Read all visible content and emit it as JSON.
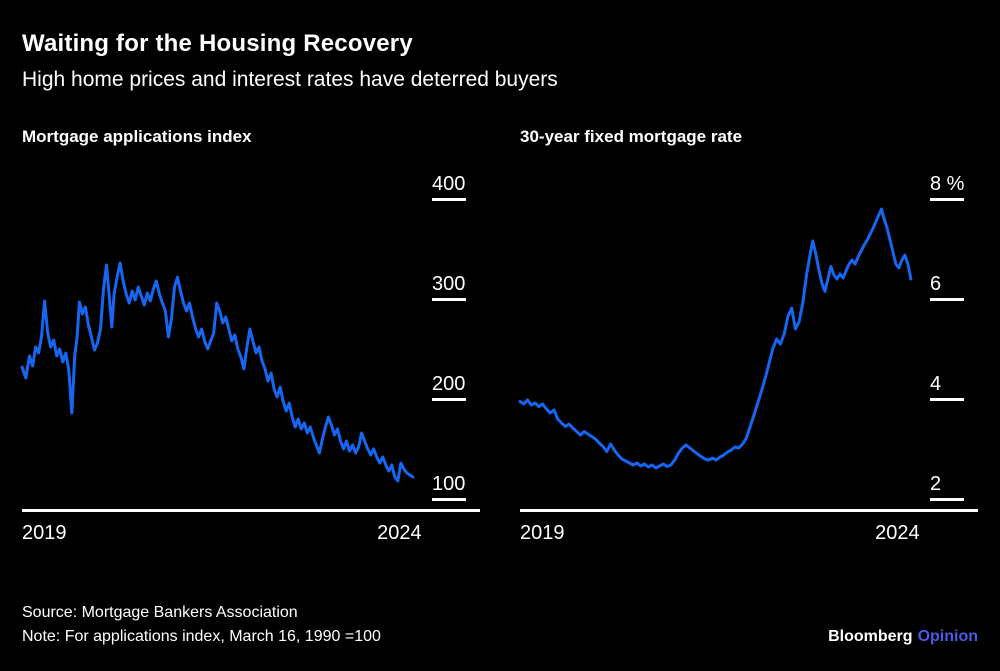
{
  "header": {
    "title": "Waiting for the Housing Recovery",
    "subtitle": "High home prices and interest rates have deterred buyers"
  },
  "footer": {
    "source": "Source: Mortgage Bankers Association",
    "note": "Note: For applications index, March 16, 1990 =100",
    "brand": {
      "name": "Bloomberg",
      "division": "Opinion"
    }
  },
  "colors": {
    "background": "#000000",
    "text": "#ffffff",
    "axis": "#ffffff",
    "line": "#1766f2",
    "brand_accent": "#4a5ae8"
  },
  "chart_data": [
    {
      "type": "line",
      "title": "Mortgage applications index",
      "x_range": [
        2019.0,
        2024.3
      ],
      "y_domain": [
        90,
        430
      ],
      "grid": "off",
      "legend": "none",
      "yticks": [
        {
          "label": "400",
          "value": 400
        },
        {
          "label": "300",
          "value": 300
        },
        {
          "label": "200",
          "value": 200
        },
        {
          "label": "100",
          "value": 100
        }
      ],
      "xticks": [
        {
          "label": "2019",
          "value": 2019,
          "align": "start"
        },
        {
          "label": "2024",
          "value": 2024,
          "align": "center"
        }
      ],
      "series": [
        {
          "name": "Mortgage applications index",
          "points": [
            [
              2019.0,
              232
            ],
            [
              2019.05,
              221
            ],
            [
              2019.1,
              243
            ],
            [
              2019.14,
              233
            ],
            [
              2019.18,
              252
            ],
            [
              2019.22,
              246
            ],
            [
              2019.26,
              263
            ],
            [
              2019.3,
              298
            ],
            [
              2019.34,
              266
            ],
            [
              2019.38,
              252
            ],
            [
              2019.42,
              259
            ],
            [
              2019.46,
              243
            ],
            [
              2019.5,
              250
            ],
            [
              2019.54,
              237
            ],
            [
              2019.58,
              246
            ],
            [
              2019.62,
              229
            ],
            [
              2019.66,
              186
            ],
            [
              2019.7,
              244
            ],
            [
              2019.73,
              262
            ],
            [
              2019.76,
              297
            ],
            [
              2019.8,
              285
            ],
            [
              2019.84,
              292
            ],
            [
              2019.88,
              274
            ],
            [
              2019.92,
              262
            ],
            [
              2019.96,
              249
            ],
            [
              2020.0,
              256
            ],
            [
              2020.04,
              270
            ],
            [
              2020.08,
              310
            ],
            [
              2020.12,
              334
            ],
            [
              2020.16,
              300
            ],
            [
              2020.19,
              272
            ],
            [
              2020.22,
              305
            ],
            [
              2020.26,
              322
            ],
            [
              2020.3,
              336
            ],
            [
              2020.34,
              318
            ],
            [
              2020.38,
              305
            ],
            [
              2020.42,
              296
            ],
            [
              2020.46,
              308
            ],
            [
              2020.5,
              299
            ],
            [
              2020.54,
              312
            ],
            [
              2020.58,
              303
            ],
            [
              2020.62,
              294
            ],
            [
              2020.66,
              306
            ],
            [
              2020.7,
              298
            ],
            [
              2020.74,
              310
            ],
            [
              2020.78,
              318
            ],
            [
              2020.82,
              305
            ],
            [
              2020.86,
              296
            ],
            [
              2020.9,
              288
            ],
            [
              2020.94,
              262
            ],
            [
              2020.98,
              280
            ],
            [
              2021.02,
              312
            ],
            [
              2021.06,
              322
            ],
            [
              2021.1,
              308
            ],
            [
              2021.14,
              296
            ],
            [
              2021.18,
              288
            ],
            [
              2021.22,
              296
            ],
            [
              2021.26,
              282
            ],
            [
              2021.3,
              270
            ],
            [
              2021.34,
              262
            ],
            [
              2021.38,
              270
            ],
            [
              2021.42,
              258
            ],
            [
              2021.46,
              250
            ],
            [
              2021.5,
              258
            ],
            [
              2021.54,
              266
            ],
            [
              2021.58,
              296
            ],
            [
              2021.62,
              288
            ],
            [
              2021.66,
              276
            ],
            [
              2021.7,
              282
            ],
            [
              2021.74,
              270
            ],
            [
              2021.78,
              258
            ],
            [
              2021.82,
              264
            ],
            [
              2021.86,
              250
            ],
            [
              2021.9,
              242
            ],
            [
              2021.94,
              230
            ],
            [
              2021.98,
              252
            ],
            [
              2022.02,
              270
            ],
            [
              2022.06,
              258
            ],
            [
              2022.1,
              246
            ],
            [
              2022.14,
              252
            ],
            [
              2022.18,
              238
            ],
            [
              2022.22,
              230
            ],
            [
              2022.26,
              218
            ],
            [
              2022.3,
              226
            ],
            [
              2022.34,
              210
            ],
            [
              2022.38,
              202
            ],
            [
              2022.42,
              212
            ],
            [
              2022.46,
              198
            ],
            [
              2022.5,
              188
            ],
            [
              2022.54,
              196
            ],
            [
              2022.58,
              182
            ],
            [
              2022.62,
              172
            ],
            [
              2022.66,
              180
            ],
            [
              2022.7,
              170
            ],
            [
              2022.74,
              176
            ],
            [
              2022.78,
              166
            ],
            [
              2022.82,
              172
            ],
            [
              2022.86,
              162
            ],
            [
              2022.9,
              154
            ],
            [
              2022.94,
              146
            ],
            [
              2022.98,
              160
            ],
            [
              2023.02,
              172
            ],
            [
              2023.06,
              182
            ],
            [
              2023.1,
              174
            ],
            [
              2023.14,
              164
            ],
            [
              2023.18,
              170
            ],
            [
              2023.22,
              158
            ],
            [
              2023.26,
              150
            ],
            [
              2023.3,
              158
            ],
            [
              2023.34,
              148
            ],
            [
              2023.38,
              154
            ],
            [
              2023.42,
              146
            ],
            [
              2023.46,
              152
            ],
            [
              2023.5,
              166
            ],
            [
              2023.54,
              158
            ],
            [
              2023.58,
              150
            ],
            [
              2023.62,
              144
            ],
            [
              2023.66,
              150
            ],
            [
              2023.7,
              142
            ],
            [
              2023.74,
              136
            ],
            [
              2023.78,
              142
            ],
            [
              2023.82,
              134
            ],
            [
              2023.86,
              128
            ],
            [
              2023.9,
              134
            ],
            [
              2023.94,
              122
            ],
            [
              2023.98,
              118
            ],
            [
              2024.02,
              136
            ],
            [
              2024.06,
              130
            ],
            [
              2024.1,
              126
            ],
            [
              2024.14,
              124
            ],
            [
              2024.18,
              122
            ]
          ]
        }
      ]
    },
    {
      "type": "line",
      "title": "30-year fixed mortgage rate",
      "x_range": [
        2019.0,
        2024.3
      ],
      "y_domain": [
        1.8,
        8.6
      ],
      "grid": "off",
      "legend": "none",
      "yticks": [
        {
          "label": "8 %",
          "value": 8
        },
        {
          "label": "6",
          "value": 6
        },
        {
          "label": "4",
          "value": 4
        },
        {
          "label": "2",
          "value": 2
        }
      ],
      "xticks": [
        {
          "label": "2019",
          "value": 2019,
          "align": "start"
        },
        {
          "label": "2024",
          "value": 2024,
          "align": "center"
        }
      ],
      "series": [
        {
          "name": "30-year fixed mortgage rate (%)",
          "points": [
            [
              2019.0,
              3.95
            ],
            [
              2019.05,
              3.9
            ],
            [
              2019.1,
              3.98
            ],
            [
              2019.15,
              3.88
            ],
            [
              2019.2,
              3.92
            ],
            [
              2019.25,
              3.85
            ],
            [
              2019.3,
              3.9
            ],
            [
              2019.35,
              3.8
            ],
            [
              2019.4,
              3.72
            ],
            [
              2019.45,
              3.78
            ],
            [
              2019.5,
              3.6
            ],
            [
              2019.55,
              3.52
            ],
            [
              2019.6,
              3.45
            ],
            [
              2019.65,
              3.5
            ],
            [
              2019.7,
              3.42
            ],
            [
              2019.75,
              3.35
            ],
            [
              2019.8,
              3.28
            ],
            [
              2019.85,
              3.35
            ],
            [
              2019.9,
              3.3
            ],
            [
              2019.95,
              3.25
            ],
            [
              2020.0,
              3.2
            ],
            [
              2020.05,
              3.12
            ],
            [
              2020.1,
              3.05
            ],
            [
              2020.15,
              2.95
            ],
            [
              2020.2,
              3.1
            ],
            [
              2020.25,
              2.98
            ],
            [
              2020.3,
              2.88
            ],
            [
              2020.35,
              2.8
            ],
            [
              2020.4,
              2.76
            ],
            [
              2020.45,
              2.72
            ],
            [
              2020.5,
              2.68
            ],
            [
              2020.55,
              2.72
            ],
            [
              2020.6,
              2.66
            ],
            [
              2020.65,
              2.7
            ],
            [
              2020.7,
              2.64
            ],
            [
              2020.75,
              2.68
            ],
            [
              2020.8,
              2.62
            ],
            [
              2020.85,
              2.66
            ],
            [
              2020.9,
              2.7
            ],
            [
              2020.95,
              2.65
            ],
            [
              2021.0,
              2.68
            ],
            [
              2021.05,
              2.78
            ],
            [
              2021.1,
              2.92
            ],
            [
              2021.15,
              3.02
            ],
            [
              2021.2,
              3.08
            ],
            [
              2021.25,
              3.02
            ],
            [
              2021.3,
              2.96
            ],
            [
              2021.35,
              2.9
            ],
            [
              2021.4,
              2.85
            ],
            [
              2021.45,
              2.8
            ],
            [
              2021.5,
              2.78
            ],
            [
              2021.55,
              2.82
            ],
            [
              2021.6,
              2.78
            ],
            [
              2021.65,
              2.84
            ],
            [
              2021.7,
              2.88
            ],
            [
              2021.75,
              2.94
            ],
            [
              2021.8,
              2.98
            ],
            [
              2021.85,
              3.04
            ],
            [
              2021.9,
              3.02
            ],
            [
              2021.95,
              3.1
            ],
            [
              2022.0,
              3.22
            ],
            [
              2022.05,
              3.45
            ],
            [
              2022.1,
              3.68
            ],
            [
              2022.15,
              3.92
            ],
            [
              2022.2,
              4.16
            ],
            [
              2022.25,
              4.42
            ],
            [
              2022.3,
              4.72
            ],
            [
              2022.35,
              5.0
            ],
            [
              2022.4,
              5.2
            ],
            [
              2022.45,
              5.1
            ],
            [
              2022.5,
              5.3
            ],
            [
              2022.55,
              5.65
            ],
            [
              2022.6,
              5.82
            ],
            [
              2022.65,
              5.4
            ],
            [
              2022.7,
              5.55
            ],
            [
              2022.75,
              5.95
            ],
            [
              2022.8,
              6.52
            ],
            [
              2022.85,
              6.94
            ],
            [
              2022.88,
              7.16
            ],
            [
              2022.92,
              6.9
            ],
            [
              2022.96,
              6.58
            ],
            [
              2023.0,
              6.32
            ],
            [
              2023.04,
              6.15
            ],
            [
              2023.08,
              6.4
            ],
            [
              2023.12,
              6.65
            ],
            [
              2023.16,
              6.48
            ],
            [
              2023.2,
              6.4
            ],
            [
              2023.24,
              6.5
            ],
            [
              2023.28,
              6.42
            ],
            [
              2023.32,
              6.56
            ],
            [
              2023.36,
              6.7
            ],
            [
              2023.4,
              6.78
            ],
            [
              2023.44,
              6.7
            ],
            [
              2023.48,
              6.84
            ],
            [
              2023.52,
              6.96
            ],
            [
              2023.56,
              7.08
            ],
            [
              2023.6,
              7.18
            ],
            [
              2023.64,
              7.3
            ],
            [
              2023.68,
              7.42
            ],
            [
              2023.72,
              7.56
            ],
            [
              2023.76,
              7.7
            ],
            [
              2023.79,
              7.8
            ],
            [
              2023.82,
              7.62
            ],
            [
              2023.86,
              7.44
            ],
            [
              2023.9,
              7.2
            ],
            [
              2023.94,
              6.95
            ],
            [
              2023.98,
              6.7
            ],
            [
              2024.02,
              6.62
            ],
            [
              2024.06,
              6.78
            ],
            [
              2024.1,
              6.88
            ],
            [
              2024.14,
              6.7
            ],
            [
              2024.18,
              6.4
            ]
          ]
        }
      ]
    }
  ]
}
